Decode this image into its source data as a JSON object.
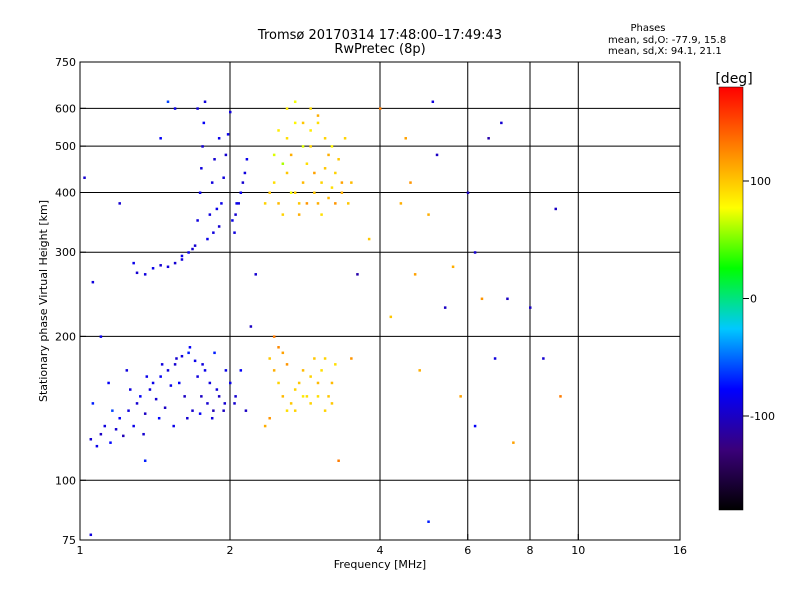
{
  "title_line1": "Tromsø 20170314 17:48:00–17:49:43",
  "title_line2": "RwPretec (8p)",
  "stats": {
    "heading": "Phases",
    "line1": "mean, sd,O: -77.9, 15.8",
    "line2": "mean, sd,X: 94.1, 21.1"
  },
  "colorbar": {
    "title": "[deg]",
    "ticks": [
      {
        "value": 100,
        "label": "100"
      },
      {
        "value": 0,
        "label": "0"
      },
      {
        "value": -100,
        "label": "-100"
      }
    ],
    "range": [
      -180,
      180
    ],
    "stops": [
      "#000000",
      "#3a007a",
      "#0000ff",
      "#00c8ff",
      "#00ff00",
      "#ffff00",
      "#ff8000",
      "#ff0000"
    ]
  },
  "chart_data": {
    "type": "scatter",
    "xlabel": "Frequency [MHz]",
    "ylabel": "Stationary phase Virtual Height [km]",
    "x_scale": "log",
    "y_scale": "log",
    "xlim": [
      1,
      16
    ],
    "ylim": [
      75,
      750
    ],
    "x_ticks": [
      1,
      2,
      4,
      6,
      8,
      10,
      16
    ],
    "x_gridlines": [
      2,
      4,
      6,
      8,
      10
    ],
    "y_ticks": [
      75,
      100,
      200,
      300,
      400,
      500,
      600,
      750
    ],
    "y_gridlines": [
      100,
      200,
      300,
      400,
      500,
      600
    ],
    "color_quantity": "phase [deg]",
    "points": [
      [
        1.05,
        122,
        -95
      ],
      [
        1.08,
        118,
        -85
      ],
      [
        1.1,
        125,
        -100
      ],
      [
        1.12,
        130,
        -90
      ],
      [
        1.15,
        120,
        -75
      ],
      [
        1.18,
        128,
        -95
      ],
      [
        1.2,
        135,
        -80
      ],
      [
        1.22,
        124,
        -105
      ],
      [
        1.25,
        140,
        -90
      ],
      [
        1.28,
        130,
        -85
      ],
      [
        1.3,
        145,
        -95
      ],
      [
        1.32,
        150,
        -80
      ],
      [
        1.35,
        138,
        -100
      ],
      [
        1.38,
        155,
        -90
      ],
      [
        1.4,
        160,
        -85
      ],
      [
        1.42,
        148,
        -95
      ],
      [
        1.45,
        165,
        -80
      ],
      [
        1.48,
        142,
        -100
      ],
      [
        1.5,
        170,
        -90
      ],
      [
        1.52,
        158,
        -85
      ],
      [
        1.55,
        175,
        -95
      ],
      [
        1.58,
        160,
        -80
      ],
      [
        1.6,
        182,
        -90
      ],
      [
        1.62,
        150,
        -100
      ],
      [
        1.65,
        185,
        -70
      ],
      [
        1.68,
        140,
        -95
      ],
      [
        1.7,
        178,
        -85
      ],
      [
        1.72,
        165,
        -90
      ],
      [
        1.75,
        150,
        -100
      ],
      [
        1.78,
        170,
        -85
      ],
      [
        1.8,
        145,
        -95
      ],
      [
        1.82,
        160,
        -90
      ],
      [
        1.85,
        140,
        -105
      ],
      [
        1.88,
        155,
        -90
      ],
      [
        1.9,
        150,
        -100
      ],
      [
        1.95,
        145,
        -95
      ],
      [
        2.0,
        160,
        -85
      ],
      [
        2.05,
        150,
        -95
      ],
      [
        2.1,
        170,
        -80
      ],
      [
        2.15,
        140,
        -100
      ],
      [
        1.06,
        145,
        -70
      ],
      [
        1.14,
        160,
        -80
      ],
      [
        1.24,
        170,
        -90
      ],
      [
        1.34,
        125,
        -95
      ],
      [
        1.44,
        135,
        -75
      ],
      [
        1.54,
        130,
        -85
      ],
      [
        1.64,
        135,
        -95
      ],
      [
        1.74,
        138,
        -80
      ],
      [
        1.84,
        135,
        -90
      ],
      [
        1.94,
        140,
        -100
      ],
      [
        2.04,
        145,
        -95
      ],
      [
        1.16,
        140,
        -60
      ],
      [
        1.26,
        155,
        -90
      ],
      [
        1.36,
        165,
        -85
      ],
      [
        1.46,
        175,
        -90
      ],
      [
        1.56,
        180,
        -95
      ],
      [
        1.66,
        190,
        -80
      ],
      [
        1.76,
        175,
        -90
      ],
      [
        1.86,
        185,
        -70
      ],
      [
        1.96,
        170,
        -85
      ],
      [
        1.55,
        285,
        -95
      ],
      [
        1.6,
        290,
        -90
      ],
      [
        1.65,
        300,
        -85
      ],
      [
        1.7,
        310,
        -95
      ],
      [
        1.72,
        350,
        -90
      ],
      [
        1.74,
        400,
        -85
      ],
      [
        1.75,
        450,
        -90
      ],
      [
        1.76,
        500,
        -95
      ],
      [
        1.77,
        560,
        -80
      ],
      [
        1.78,
        620,
        -90
      ],
      [
        1.8,
        320,
        -85
      ],
      [
        1.85,
        330,
        -90
      ],
      [
        1.9,
        340,
        -95
      ],
      [
        1.92,
        380,
        -85
      ],
      [
        1.94,
        430,
        -90
      ],
      [
        1.96,
        480,
        -95
      ],
      [
        1.98,
        530,
        -85
      ],
      [
        2.0,
        590,
        -90
      ],
      [
        2.02,
        350,
        -85
      ],
      [
        2.05,
        360,
        -95
      ],
      [
        2.08,
        380,
        -90
      ],
      [
        2.1,
        400,
        -85
      ],
      [
        2.12,
        420,
        -95
      ],
      [
        2.14,
        440,
        -90
      ],
      [
        2.16,
        470,
        -85
      ],
      [
        1.82,
        360,
        -90
      ],
      [
        1.88,
        370,
        -85
      ],
      [
        1.68,
        305,
        -95
      ],
      [
        1.6,
        295,
        -85
      ],
      [
        1.5,
        280,
        -90
      ],
      [
        1.45,
        282,
        -95
      ],
      [
        1.4,
        278,
        -85
      ],
      [
        1.35,
        270,
        -90
      ],
      [
        1.3,
        272,
        -95
      ],
      [
        1.28,
        285,
        -85
      ],
      [
        1.84,
        420,
        -90
      ],
      [
        1.86,
        470,
        -95
      ],
      [
        1.9,
        520,
        -85
      ],
      [
        2.04,
        330,
        -90
      ],
      [
        2.06,
        380,
        -85
      ],
      [
        2.35,
        380,
        95
      ],
      [
        2.4,
        400,
        100
      ],
      [
        2.45,
        420,
        90
      ],
      [
        2.5,
        380,
        105
      ],
      [
        2.55,
        360,
        95
      ],
      [
        2.6,
        440,
        100
      ],
      [
        2.65,
        480,
        110
      ],
      [
        2.7,
        400,
        95
      ],
      [
        2.75,
        380,
        100
      ],
      [
        2.8,
        420,
        105
      ],
      [
        2.85,
        460,
        90
      ],
      [
        2.9,
        500,
        95
      ],
      [
        2.95,
        400,
        100
      ],
      [
        3.0,
        380,
        110
      ],
      [
        3.05,
        420,
        95
      ],
      [
        3.1,
        450,
        100
      ],
      [
        3.15,
        390,
        105
      ],
      [
        3.2,
        410,
        90
      ],
      [
        3.25,
        440,
        95
      ],
      [
        3.3,
        470,
        100
      ],
      [
        3.35,
        400,
        110
      ],
      [
        3.4,
        520,
        95
      ],
      [
        3.45,
        380,
        100
      ],
      [
        3.5,
        420,
        105
      ],
      [
        2.5,
        540,
        85
      ],
      [
        2.6,
        520,
        90
      ],
      [
        2.7,
        560,
        80
      ],
      [
        2.8,
        500,
        70
      ],
      [
        2.9,
        540,
        85
      ],
      [
        3.0,
        560,
        90
      ],
      [
        3.1,
        520,
        95
      ],
      [
        3.2,
        500,
        80
      ],
      [
        2.55,
        460,
        60
      ],
      [
        2.65,
        400,
        75
      ],
      [
        2.75,
        360,
        110
      ],
      [
        2.85,
        380,
        120
      ],
      [
        2.95,
        440,
        115
      ],
      [
        3.05,
        360,
        90
      ],
      [
        3.15,
        480,
        110
      ],
      [
        3.25,
        380,
        120
      ],
      [
        3.35,
        420,
        115
      ],
      [
        2.45,
        480,
        70
      ],
      [
        2.6,
        600,
        85
      ],
      [
        2.7,
        620,
        75
      ],
      [
        2.8,
        560,
        100
      ],
      [
        2.9,
        600,
        90
      ],
      [
        3.0,
        580,
        110
      ],
      [
        2.4,
        180,
        100
      ],
      [
        2.45,
        170,
        110
      ],
      [
        2.5,
        160,
        95
      ],
      [
        2.55,
        150,
        105
      ],
      [
        2.6,
        140,
        90
      ],
      [
        2.65,
        145,
        100
      ],
      [
        2.7,
        155,
        95
      ],
      [
        2.75,
        160,
        100
      ],
      [
        2.8,
        170,
        105
      ],
      [
        2.85,
        150,
        90
      ],
      [
        2.9,
        165,
        95
      ],
      [
        2.95,
        180,
        100
      ],
      [
        3.0,
        160,
        105
      ],
      [
        3.05,
        170,
        90
      ],
      [
        3.1,
        180,
        95
      ],
      [
        3.15,
        150,
        100
      ],
      [
        3.2,
        160,
        105
      ],
      [
        3.25,
        175,
        90
      ],
      [
        2.35,
        130,
        110
      ],
      [
        2.4,
        135,
        120
      ],
      [
        2.45,
        200,
        130
      ],
      [
        2.5,
        190,
        125
      ],
      [
        2.55,
        185,
        115
      ],
      [
        2.6,
        175,
        120
      ],
      [
        2.7,
        140,
        95
      ],
      [
        2.8,
        150,
        85
      ],
      [
        2.9,
        145,
        95
      ],
      [
        3.0,
        150,
        90
      ],
      [
        3.1,
        140,
        95
      ],
      [
        3.2,
        145,
        100
      ],
      [
        1.02,
        430,
        -95
      ],
      [
        1.06,
        260,
        -90
      ],
      [
        1.1,
        200,
        -85
      ],
      [
        1.2,
        380,
        -95
      ],
      [
        1.35,
        110,
        -70
      ],
      [
        1.45,
        520,
        -80
      ],
      [
        1.5,
        620,
        -60
      ],
      [
        1.55,
        600,
        -85
      ],
      [
        1.72,
        600,
        -90
      ],
      [
        2.2,
        210,
        -100
      ],
      [
        2.25,
        270,
        -95
      ],
      [
        3.3,
        110,
        130
      ],
      [
        3.5,
        180,
        120
      ],
      [
        3.6,
        270,
        -110
      ],
      [
        3.8,
        320,
        100
      ],
      [
        4.0,
        600,
        130
      ],
      [
        4.2,
        220,
        100
      ],
      [
        4.4,
        380,
        110
      ],
      [
        4.5,
        520,
        115
      ],
      [
        4.6,
        420,
        120
      ],
      [
        4.7,
        270,
        115
      ],
      [
        4.8,
        170,
        110
      ],
      [
        5.0,
        360,
        110
      ],
      [
        5.1,
        620,
        -90
      ],
      [
        5.2,
        480,
        -100
      ],
      [
        5.4,
        230,
        -100
      ],
      [
        5.6,
        280,
        110
      ],
      [
        5.8,
        150,
        115
      ],
      [
        6.0,
        400,
        -100
      ],
      [
        6.2,
        300,
        -95
      ],
      [
        6.4,
        240,
        120
      ],
      [
        6.6,
        520,
        -110
      ],
      [
        6.8,
        180,
        -90
      ],
      [
        7.0,
        560,
        -95
      ],
      [
        7.2,
        240,
        -100
      ],
      [
        7.4,
        120,
        115
      ],
      [
        8.0,
        230,
        -100
      ],
      [
        8.5,
        180,
        -95
      ],
      [
        9.0,
        370,
        -100
      ],
      [
        9.2,
        150,
        130
      ],
      [
        6.2,
        130,
        -80
      ],
      [
        5.0,
        82,
        -70
      ],
      [
        1.05,
        77,
        -90
      ]
    ]
  }
}
